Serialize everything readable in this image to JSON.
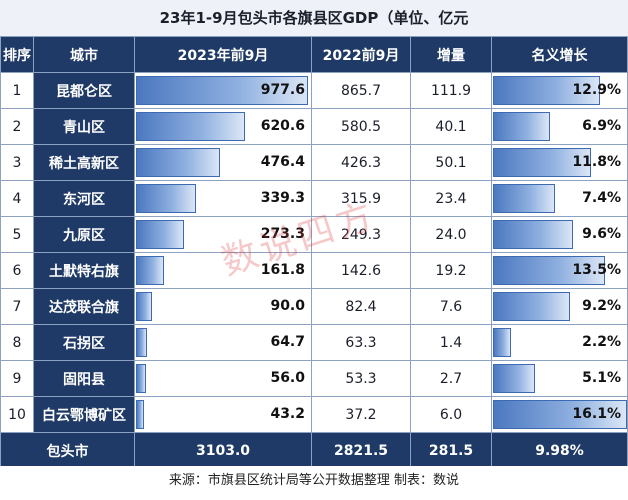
{
  "title": "23年1-9月包头市各旗县区GDP（单位、亿元",
  "headers": [
    "排序",
    "城市",
    "2023年前9月",
    "2022前9月",
    "增量",
    "名义增长"
  ],
  "rows": [
    {
      "rank": "1",
      "city": "昆都仑区",
      "v2023": "977.6",
      "v2022": "865.7",
      "inc": "111.9",
      "rate": "12.9%"
    },
    {
      "rank": "2",
      "city": "青山区",
      "v2023": "620.6",
      "v2022": "580.5",
      "inc": "40.1",
      "rate": "6.9%"
    },
    {
      "rank": "3",
      "city": "稀土高新区",
      "v2023": "476.4",
      "v2022": "426.3",
      "inc": "50.1",
      "rate": "11.8%"
    },
    {
      "rank": "4",
      "city": "东河区",
      "v2023": "339.3",
      "v2022": "315.9",
      "inc": "23.4",
      "rate": "7.4%"
    },
    {
      "rank": "5",
      "city": "九原区",
      "v2023": "273.3",
      "v2022": "249.3",
      "inc": "24.0",
      "rate": "9.6%"
    },
    {
      "rank": "6",
      "city": "土默特右旗",
      "v2023": "161.8",
      "v2022": "142.6",
      "inc": "19.2",
      "rate": "13.5%"
    },
    {
      "rank": "7",
      "city": "达茂联合旗",
      "v2023": "90.0",
      "v2022": "82.4",
      "inc": "7.6",
      "rate": "9.2%"
    },
    {
      "rank": "8",
      "city": "石拐区",
      "v2023": "64.7",
      "v2022": "63.3",
      "inc": "1.4",
      "rate": "2.2%"
    },
    {
      "rank": "9",
      "city": "固阳县",
      "v2023": "56.0",
      "v2022": "53.3",
      "inc": "2.7",
      "rate": "5.1%"
    },
    {
      "rank": "10",
      "city": "白云鄂博矿区",
      "v2023": "43.2",
      "v2022": "37.2",
      "inc": "6.0",
      "rate": "16.1%"
    }
  ],
  "total": {
    "city": "包头市",
    "v2023": "3103.0",
    "v2022": "2821.5",
    "inc": "281.5",
    "rate": "9.98%"
  },
  "source": "来源：市旗县区统计局等公开数据整理    制表：数说",
  "watermark": "数说四方",
  "colors": {
    "header": "#1f3a66",
    "bar": "#4b78c0"
  },
  "chart_data": {
    "type": "table",
    "title": "23年1-9月包头市各旗县区GDP（单位、亿元",
    "columns": [
      "排序",
      "城市",
      "2023年前9月",
      "2022前9月",
      "增量",
      "名义增长"
    ],
    "categories": [
      "昆都仑区",
      "青山区",
      "稀土高新区",
      "东河区",
      "九原区",
      "土默特右旗",
      "达茂联合旗",
      "石拐区",
      "固阳县",
      "白云鄂博矿区"
    ],
    "series": [
      {
        "name": "2023年前9月",
        "values": [
          977.6,
          620.6,
          476.4,
          339.3,
          273.3,
          161.8,
          90.0,
          64.7,
          56.0,
          43.2
        ]
      },
      {
        "name": "2022前9月",
        "values": [
          865.7,
          580.5,
          426.3,
          315.9,
          249.3,
          142.6,
          82.4,
          63.3,
          53.3,
          37.2
        ]
      },
      {
        "name": "增量",
        "values": [
          111.9,
          40.1,
          50.1,
          23.4,
          24.0,
          19.2,
          7.6,
          1.4,
          2.7,
          6.0
        ]
      },
      {
        "name": "名义增长",
        "values": [
          12.9,
          6.9,
          11.8,
          7.4,
          9.6,
          13.5,
          9.2,
          2.2,
          5.1,
          16.1
        ]
      }
    ],
    "xlim_bar_2023": [
      0,
      977.6
    ],
    "xlim_bar_rate": [
      0,
      16.1
    ]
  }
}
